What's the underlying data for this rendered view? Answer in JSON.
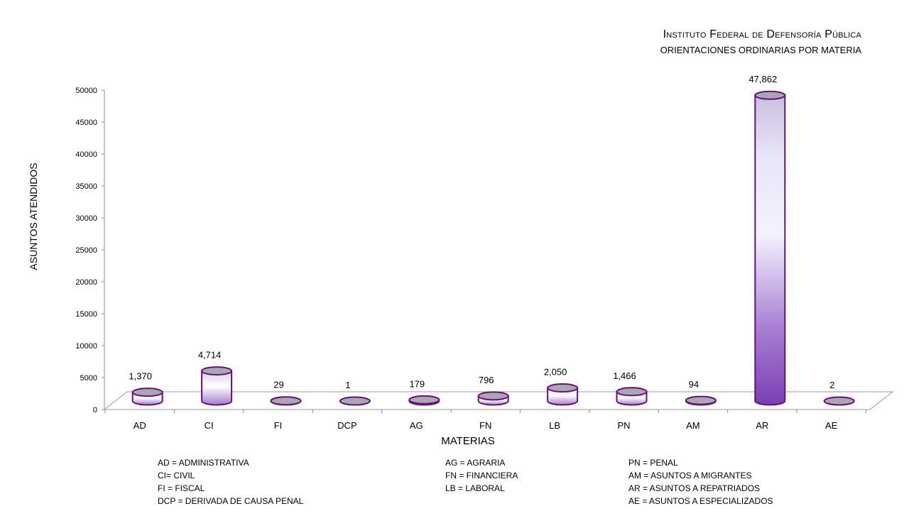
{
  "title": "Instituto Federal de Defensoría Pública",
  "subtitle": "ORIENTACIONES ORDINARIAS POR MATERIA",
  "chart_data": {
    "type": "bar",
    "style": "3d-cylinder",
    "categories": [
      "AD",
      "CI",
      "FI",
      "DCP",
      "AG",
      "FN",
      "LB",
      "PN",
      "AM",
      "AR",
      "AE"
    ],
    "values": [
      1370,
      4714,
      29,
      1,
      179,
      796,
      2050,
      1466,
      94,
      47862,
      2
    ],
    "data_labels": [
      "1,370",
      "4,714",
      "29",
      "1",
      "179",
      "796",
      "2,050",
      "1,466",
      "94",
      "47,862",
      "2"
    ],
    "xlabel": "MATERIAS",
    "ylabel": "ASUNTOS ATENDIDOS",
    "ylim": [
      0,
      50000
    ],
    "yticks": [
      0,
      5000,
      10000,
      15000,
      20000,
      25000,
      30000,
      35000,
      40000,
      45000,
      50000
    ],
    "grid": false,
    "colors": {
      "fill_light": "#f4f2fb",
      "fill_dark": "#7a3fb3",
      "outline": "#6a0f7a",
      "cap": "#a8a8b0"
    }
  },
  "legend": {
    "col1": [
      "AD = ADMINISTRATIVA",
      "CI= CIVIL",
      "FI = FISCAL",
      "DCP = DERIVADA DE CAUSA PENAL"
    ],
    "col2": [
      "AG = AGRARIA",
      "FN = FINANCIERA",
      "LB = LABORAL"
    ],
    "col3": [
      "PN = PENAL",
      "AM = ASUNTOS A MIGRANTES",
      "AR = ASUNTOS A REPATRIADOS",
      "AE = ASUNTOS A ESPECIALIZADOS"
    ]
  }
}
